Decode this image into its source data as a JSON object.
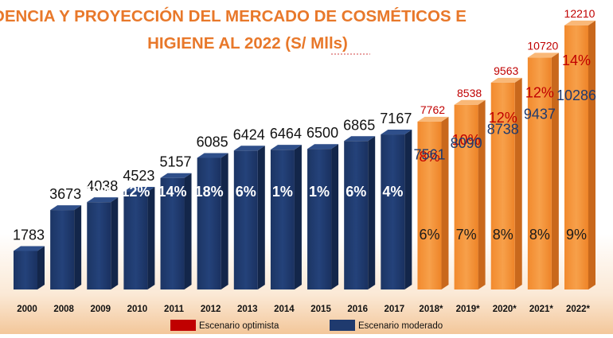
{
  "chart_data": {
    "type": "bar",
    "title_line1": "TENDENCIA Y PROYECCIÓN DEL MERCADO DE COSMÉTICOS E",
    "title_line2": "HIGIENE  AL 2022 (S/ Mlls)",
    "categories": [
      "2000",
      "2008",
      "2009",
      "2010",
      "2011",
      "2012",
      "2013",
      "2014",
      "2015",
      "2016",
      "2017",
      "2018*",
      "2019*",
      "2020*",
      "2021*",
      "2022*"
    ],
    "series": [
      {
        "name": "Escenario moderado",
        "color": "#1f3a6e",
        "values": [
          1783,
          3673,
          4038,
          4523,
          5157,
          6085,
          6424,
          6464,
          6500,
          6865,
          7167,
          7561,
          8090,
          8738,
          9437,
          10286
        ],
        "growth_labels": [
          "",
          "",
          "10%",
          "12%",
          "14%",
          "18%",
          "6%",
          "1%",
          "1%",
          "6%",
          "4%",
          "6%",
          "7%",
          "8%",
          "8%",
          "9%"
        ]
      },
      {
        "name": "Escenario optimista",
        "color": "#c00000",
        "values": [
          null,
          null,
          null,
          null,
          null,
          null,
          null,
          null,
          null,
          null,
          null,
          7762,
          8538,
          9563,
          10720,
          12210
        ],
        "growth_labels": [
          "",
          "",
          "",
          "",
          "",
          "",
          "",
          "",
          "",
          "",
          "",
          "8%",
          "10%",
          "12%",
          "12%",
          "14%"
        ]
      }
    ],
    "projection_bar_color": "#f5963c",
    "ylim": [
      0,
      12500
    ],
    "legend": [
      {
        "label": "Escenario optimista",
        "color": "#c00000"
      },
      {
        "label": "Escenario moderado",
        "color": "#1f3a6e"
      }
    ],
    "colors": {
      "title": "#e8782a",
      "historic_bar": "#1f3a6e",
      "projection_bar": "#f5963c",
      "optimistic_text": "#c00000",
      "moderate_text": "#1f3a6e",
      "value_label": "#111111",
      "growth_on_historic": "#ffffff",
      "growth_on_projection_moderate": "#1a1a1a"
    }
  }
}
